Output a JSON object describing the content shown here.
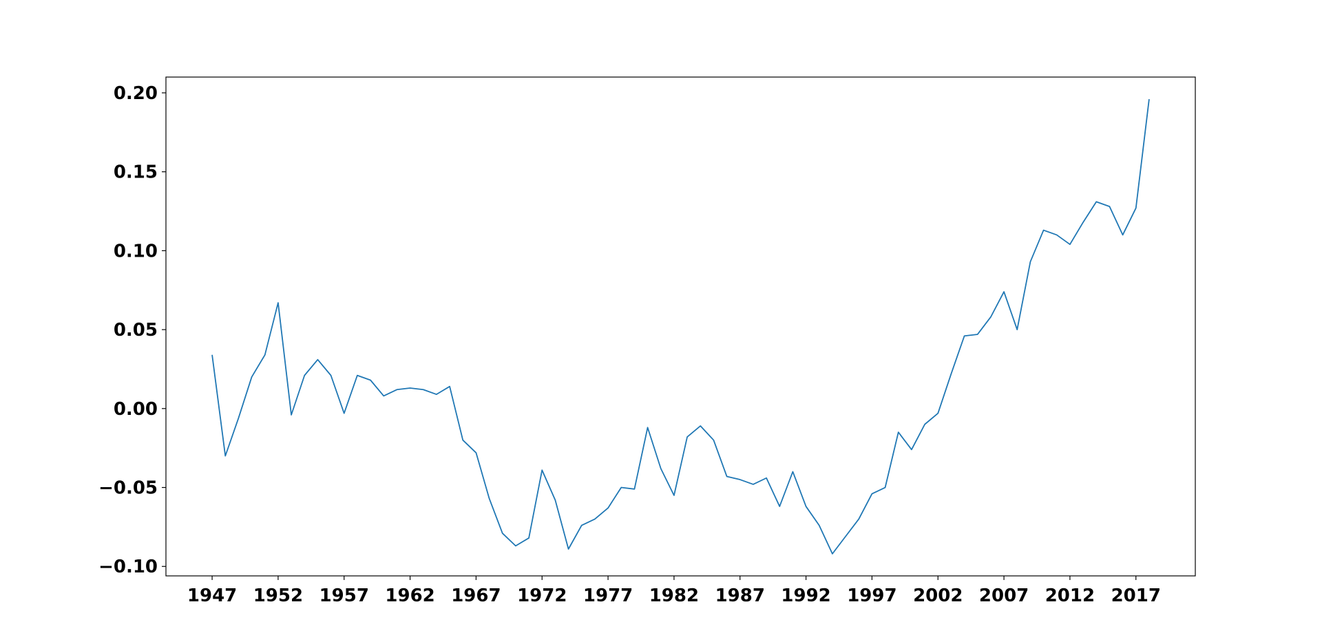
{
  "chart_data": {
    "type": "line",
    "title": "",
    "xlabel": "",
    "ylabel": "",
    "xlim": [
      1943.5,
      2021.5
    ],
    "ylim": [
      -0.106,
      0.21
    ],
    "grid": false,
    "legend": "none",
    "line_color": "#1f77b4",
    "x_ticks": [
      1947,
      1952,
      1957,
      1962,
      1967,
      1972,
      1977,
      1982,
      1987,
      1992,
      1997,
      2002,
      2007,
      2012,
      2017
    ],
    "y_ticks": [
      {
        "value": -0.1,
        "label": "−0.10"
      },
      {
        "value": -0.05,
        "label": "−0.05"
      },
      {
        "value": 0.0,
        "label": "0.00"
      },
      {
        "value": 0.05,
        "label": "0.05"
      },
      {
        "value": 0.1,
        "label": "0.10"
      },
      {
        "value": 0.15,
        "label": "0.15"
      },
      {
        "value": 0.2,
        "label": "0.20"
      }
    ],
    "series": [
      {
        "x": [
          1947,
          1948,
          1949,
          1950,
          1951,
          1952,
          1953,
          1954,
          1955,
          1956,
          1957,
          1958,
          1959,
          1960,
          1961,
          1962,
          1963,
          1964,
          1965,
          1966,
          1967,
          1968,
          1969,
          1970,
          1971,
          1972,
          1973,
          1974,
          1975,
          1976,
          1977,
          1978,
          1979,
          1980,
          1981,
          1982,
          1983,
          1984,
          1985,
          1986,
          1987,
          1988,
          1989,
          1990,
          1991,
          1992,
          1993,
          1994,
          1995,
          1996,
          1997,
          1998,
          1999,
          2000,
          2001,
          2002,
          2003,
          2004,
          2005,
          2006,
          2007,
          2008,
          2009,
          2010,
          2011,
          2012,
          2013,
          2014,
          2015,
          2016,
          2017,
          2018
        ],
        "values": [
          0.034,
          -0.03,
          -0.006,
          0.02,
          0.034,
          0.067,
          -0.004,
          0.021,
          0.031,
          0.021,
          -0.003,
          0.021,
          0.018,
          0.008,
          0.012,
          0.013,
          0.012,
          0.009,
          0.014,
          -0.02,
          -0.028,
          -0.057,
          -0.079,
          -0.087,
          -0.082,
          -0.039,
          -0.058,
          -0.089,
          -0.074,
          -0.07,
          -0.063,
          -0.05,
          -0.051,
          -0.012,
          -0.038,
          -0.055,
          -0.018,
          -0.011,
          -0.02,
          -0.043,
          -0.045,
          -0.048,
          -0.044,
          -0.062,
          -0.04,
          -0.062,
          -0.074,
          -0.092,
          -0.081,
          -0.07,
          -0.054,
          -0.05,
          -0.015,
          -0.026,
          -0.01,
          -0.003,
          0.022,
          0.046,
          0.047,
          0.058,
          0.074,
          0.05,
          0.093,
          0.113,
          0.11,
          0.104,
          0.118,
          0.131,
          0.128,
          0.11,
          0.127,
          0.196
        ]
      }
    ]
  }
}
